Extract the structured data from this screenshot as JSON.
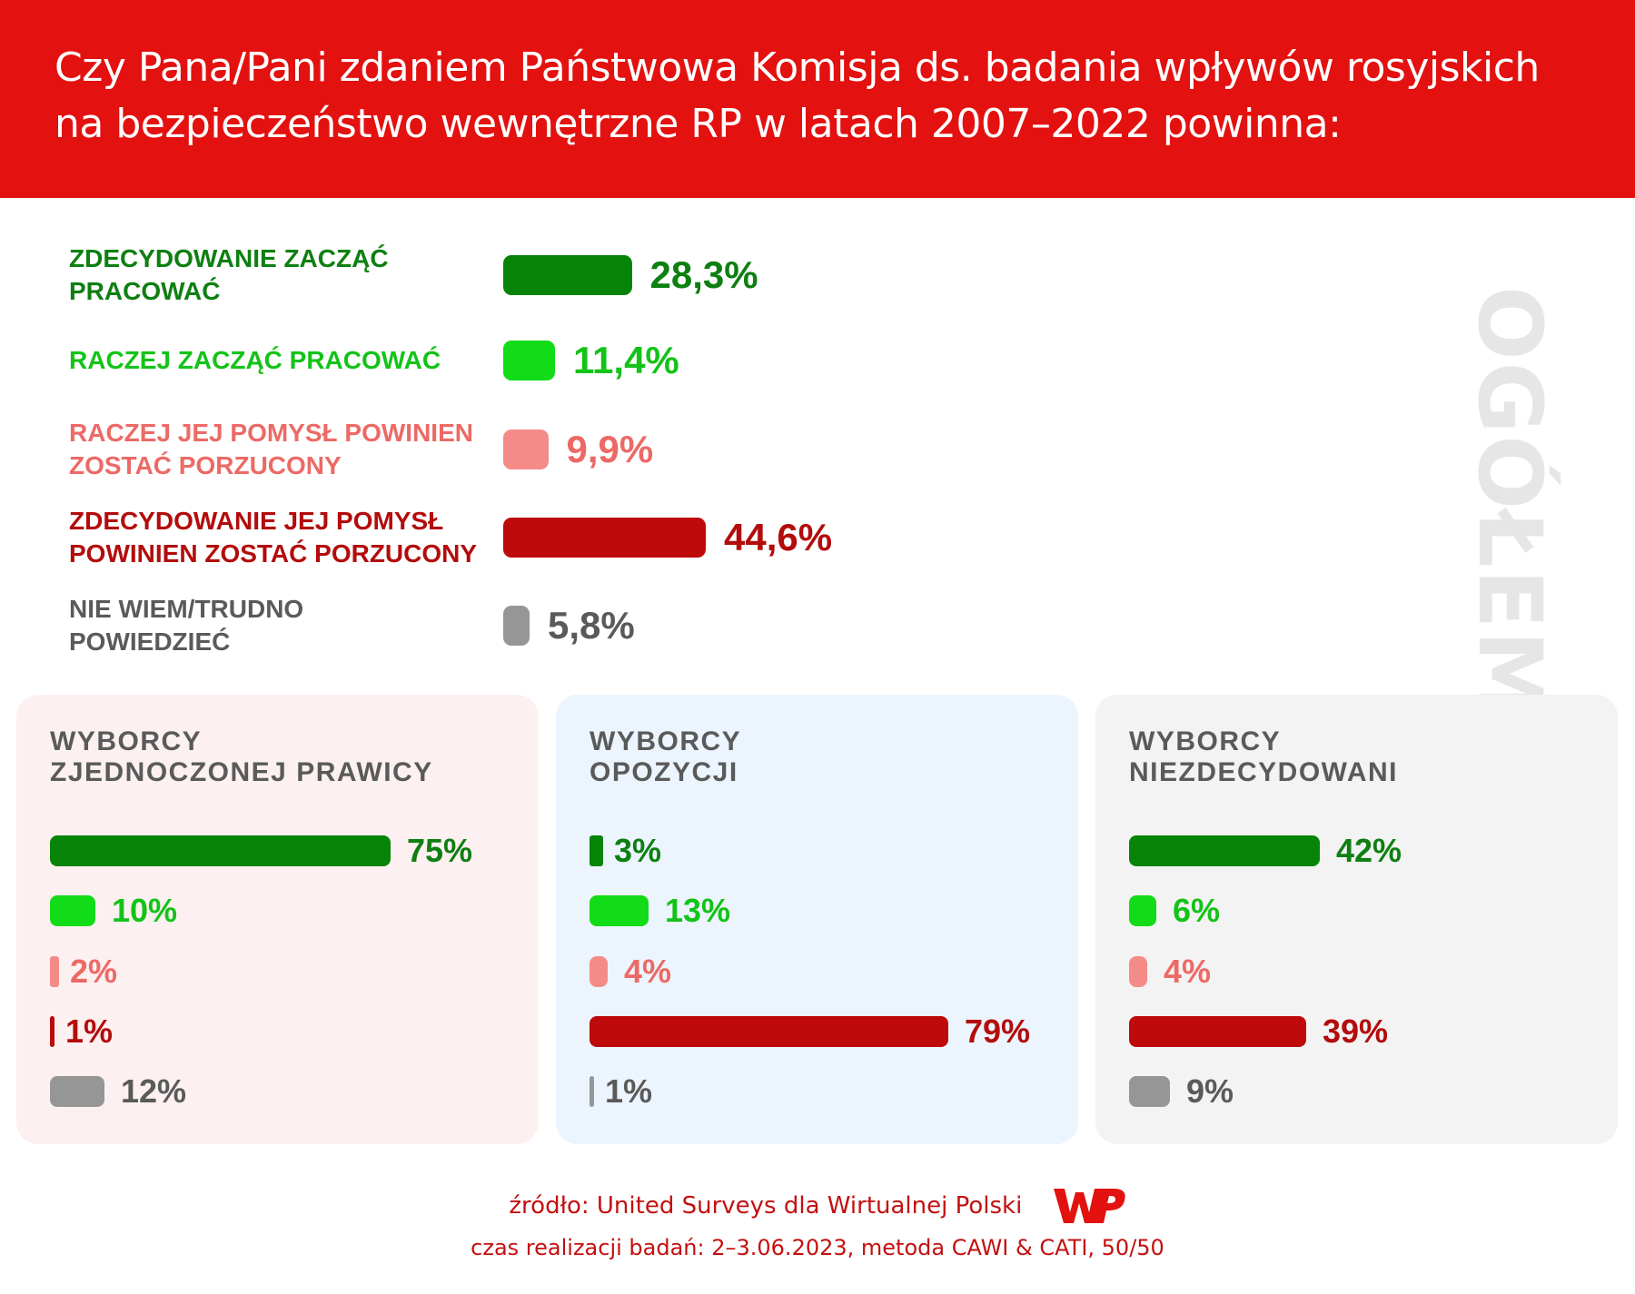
{
  "header": {
    "title_line1": "Czy Pana/Pani zdaniem Państwowa Komisja ds. badania wpływów rosyjskich",
    "title_line2": "na bezpieczeństwo wewnętrzne RP w latach 2007–2022 powinna:",
    "background": "#e3110f"
  },
  "colors": {
    "dark_green": "#068408",
    "light_green": "#12dc17",
    "light_red": "#f58b88",
    "dark_red": "#be0a0a",
    "gray": "#969696",
    "text_green": "#0e7f11",
    "text_light_green": "#13c318",
    "text_light_red": "#ec6a66",
    "text_dark_red": "#b30c0c",
    "text_gray": "#5a5a5a"
  },
  "chart_data": [
    {
      "type": "bar",
      "title": "OGÓŁEM",
      "unit": "%",
      "categories": [
        "ZDECYDOWANIE ZACZĄĆ PRACOWAĆ",
        "RACZEJ ZACZĄĆ PRACOWAĆ",
        "RACZEJ JEJ POMYSŁ POWINIEN ZOSTAĆ PORZUCONY",
        "ZDECYDOWANIE JEJ POMYSŁ POWINIEN ZOSTAĆ PORZUCONY",
        "NIE WIEM/TRUDNO POWIEDZIEĆ"
      ],
      "values": [
        28.3,
        11.4,
        9.9,
        44.6,
        5.8
      ],
      "value_labels": [
        "28,3%",
        "11,4%",
        "9,9%",
        "44,6%",
        "5,8%"
      ],
      "orientation": "horizontal"
    },
    {
      "type": "bar",
      "title": "WYBORCY ZJEDNOCZONEJ PRAWICY",
      "unit": "%",
      "values": [
        75,
        10,
        2,
        1,
        12
      ],
      "value_labels": [
        "75%",
        "10%",
        "2%",
        "1%",
        "12%"
      ],
      "orientation": "horizontal",
      "background": "#fdf0f0"
    },
    {
      "type": "bar",
      "title": "WYBORCY OPOZYCJI",
      "unit": "%",
      "values": [
        3,
        13,
        4,
        79,
        1
      ],
      "value_labels": [
        "3%",
        "13%",
        "4%",
        "79%",
        "1%"
      ],
      "orientation": "horizontal",
      "background": "#ecf4fd"
    },
    {
      "type": "bar",
      "title": "WYBORCY NIEZDECYDOWANI",
      "unit": "%",
      "values": [
        42,
        6,
        4,
        39,
        9
      ],
      "value_labels": [
        "42%",
        "6%",
        "4%",
        "39%",
        "9%"
      ],
      "orientation": "horizontal",
      "background": "#f3f3f3"
    }
  ],
  "panels": [
    {
      "title_line1": "WYBORCY",
      "title_line2": "ZJEDNOCZONEJ PRAWICY"
    },
    {
      "title_line1": "WYBORCY",
      "title_line2": "OPOZYCJI"
    },
    {
      "title_line1": "WYBORCY",
      "title_line2": "NIEZDECYDOWANI"
    }
  ],
  "main_labels": [
    [
      "ZDECYDOWANIE ZACZĄĆ",
      "PRACOWAĆ"
    ],
    [
      "RACZEJ ZACZĄĆ PRACOWAĆ"
    ],
    [
      "RACZEJ JEJ POMYSŁ POWINIEN",
      "ZOSTAĆ PORZUCONY"
    ],
    [
      "ZDECYDOWANIE JEJ POMYSŁ",
      "POWINIEN ZOSTAĆ PORZUCONY"
    ],
    [
      "NIE WIEM/TRUDNO",
      "POWIEDZIEĆ"
    ]
  ],
  "footer": {
    "source": "źródło: United Surveys dla Wirtualnej Polski",
    "meta": "czas realizacji badań: 2–3.06.2023, metoda CAWI & CATI, 50/50",
    "logo_name": "wp-logo"
  }
}
